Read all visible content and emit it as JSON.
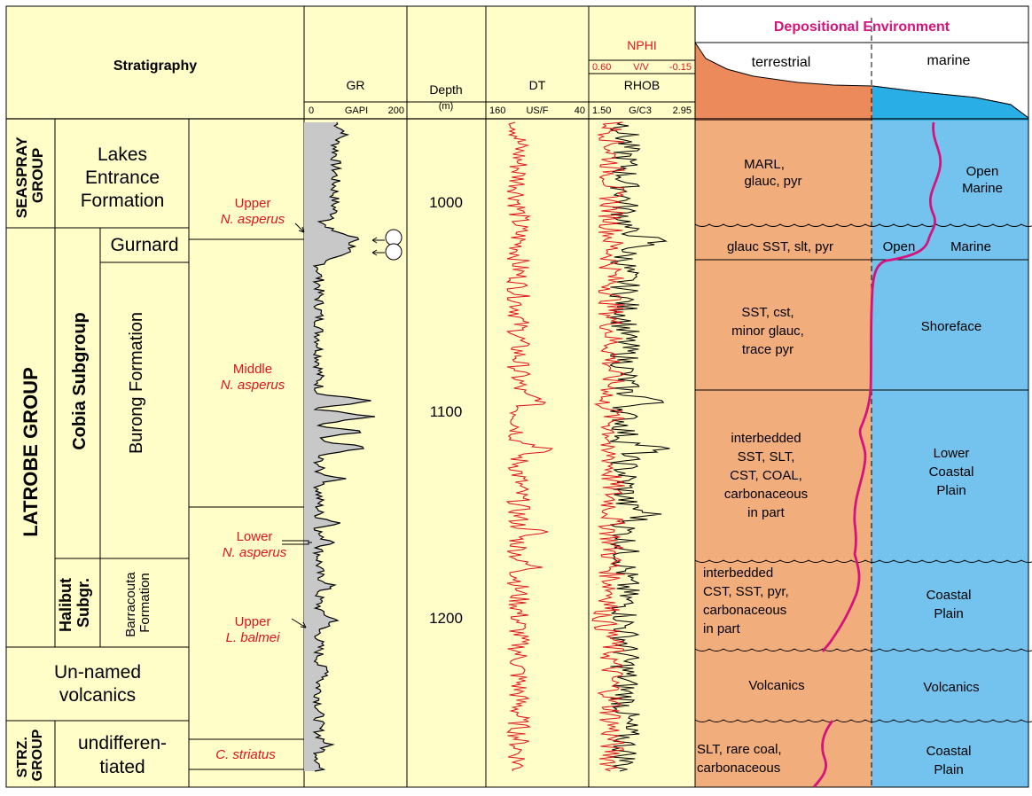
{
  "stratigraphy": {
    "header": "Stratigraphy",
    "groups": {
      "seaspray": [
        "SEASPRAY",
        "GROUP"
      ],
      "latrobe": "LATROBE GROUP",
      "strz": [
        "STRZ.",
        "GROUP"
      ]
    },
    "subgroups": {
      "cobia": "Cobia Subgroup",
      "halibut": [
        "Halibut",
        "Subgr."
      ]
    },
    "formations": {
      "lakes": [
        "Lakes",
        "Entrance",
        "Formation"
      ],
      "gurnard": "Gurnard",
      "burong": "Burong Formation",
      "barracouta": [
        "Barracouta",
        "Formation"
      ],
      "volcanics": [
        "Un-named",
        "volcanics"
      ],
      "undiff": [
        "undifferen-",
        "tiated"
      ]
    },
    "biozones": {
      "upper_n_asperus": [
        "Upper",
        "N. asperus"
      ],
      "middle_n_asperus": [
        "Middle",
        "N. asperus"
      ],
      "lower_n_asperus": [
        "Lower",
        "N. asperus"
      ],
      "upper_l_balmei": [
        "Upper",
        "L. balmei"
      ],
      "c_striatus": "C. striatus"
    }
  },
  "logs": {
    "gr": {
      "name": "GR",
      "min": "0",
      "unit": "GAPI",
      "max": "200"
    },
    "depth": {
      "name": "Depth",
      "unit": "(m)",
      "ticks": [
        "1000",
        "1100",
        "1200"
      ]
    },
    "dt": {
      "name": "DT",
      "min": "160",
      "unit": "US/F",
      "max": "40"
    },
    "nphi": {
      "name": "NPHI",
      "min": "0.60",
      "unit": "V/V",
      "max": "-0.15"
    },
    "rhob": {
      "name": "RHOB",
      "min": "1.50",
      "unit": "G/C3",
      "max": "2.95"
    }
  },
  "environment": {
    "header": "Depositional Environment",
    "terrestrial": "terrestrial",
    "marine": "marine",
    "lithology": {
      "marl": [
        "MARL,",
        "glauc, pyr"
      ],
      "gurnard": "glauc SST, slt, pyr",
      "burong_upper": [
        "SST, cst,",
        "minor glauc,",
        "trace pyr"
      ],
      "burong_lower": [
        "interbedded",
        "SST, SLT,",
        "CST, COAL,",
        "carbonaceous",
        "in part"
      ],
      "barracouta": [
        "interbedded",
        "CST, SST, pyr,",
        "carbonaceous",
        "in part"
      ],
      "volcanics": "Volcanics",
      "undiff": [
        "SLT, rare coal,",
        "carbonaceous"
      ]
    },
    "setting": {
      "open_marine": [
        "Open",
        "Marine"
      ],
      "open_marine_2": [
        "Open",
        "Marine"
      ],
      "shoreface": "Shoreface",
      "lower_coastal": [
        "Lower",
        "Coastal",
        "Plain"
      ],
      "coastal": [
        "Coastal",
        "Plain"
      ],
      "volcanics": "Volcanics",
      "coastal_2": [
        "Coastal",
        "Plain"
      ]
    }
  },
  "colors": {
    "panel": "#fffdc8",
    "gr_fill": "#c8c8c8",
    "terrestrial": "#f2ad7c",
    "terrestrial_dark": "#ec8a5c",
    "marine": "#74c3ef",
    "marine_dark": "#29aee6",
    "curve_red": "#e0141e",
    "env_curve": "#d4147c",
    "header_pink": "#d4147c"
  }
}
